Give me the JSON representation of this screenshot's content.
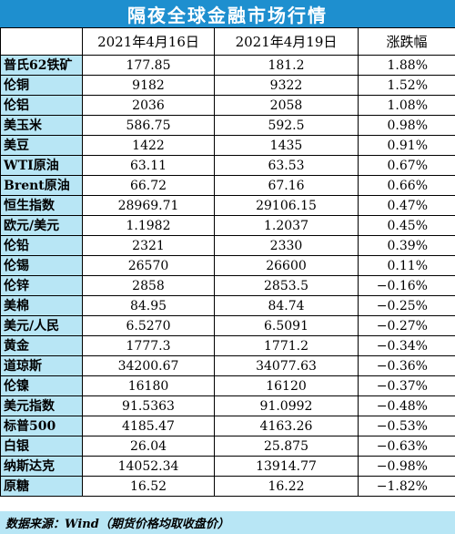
{
  "title": "隔夜全球金融市场行情",
  "headers": [
    "",
    "2021年4月16日",
    "2021年4月19日",
    "涨跌幅"
  ],
  "rows": [
    [
      "普氏62铁矿",
      "177.85",
      "181.2",
      "1.88%"
    ],
    [
      "伦铜",
      "9182",
      "9322",
      "1.52%"
    ],
    [
      "伦铝",
      "2036",
      "2058",
      "1.08%"
    ],
    [
      "美玉米",
      "586.75",
      "592.5",
      "0.98%"
    ],
    [
      "美豆",
      "1422",
      "1435",
      "0.91%"
    ],
    [
      "WTI原油",
      "63.11",
      "63.53",
      "0.67%"
    ],
    [
      "Brent原油",
      "66.72",
      "67.16",
      "0.66%"
    ],
    [
      "恒生指数",
      "28969.71",
      "29106.15",
      "0.47%"
    ],
    [
      "欧元/美元",
      "1.1982",
      "1.2037",
      "0.45%"
    ],
    [
      "伦铅",
      "2321",
      "2330",
      "0.39%"
    ],
    [
      "伦锡",
      "26570",
      "26600",
      "0.11%"
    ],
    [
      "伦锌",
      "2858",
      "2853.5",
      "−0.16%"
    ],
    [
      "美棉",
      "84.95",
      "84.74",
      "−0.25%"
    ],
    [
      "美元/人民",
      "6.5270",
      "6.5091",
      "−0.27%"
    ],
    [
      "黄金",
      "1777.3",
      "1771.2",
      "−0.34%"
    ],
    [
      "道琼斯",
      "34200.67",
      "34077.63",
      "−0.36%"
    ],
    [
      "伦镍",
      "16180",
      "16120",
      "−0.37%"
    ],
    [
      "美元指数",
      "91.5363",
      "91.0992",
      "−0.48%"
    ],
    [
      "标普500",
      "4185.47",
      "4163.26",
      "−0.53%"
    ],
    [
      "白银",
      "26.04",
      "25.875",
      "−0.63%"
    ],
    [
      "纳斯达克",
      "14052.34",
      "13914.77",
      "−0.98%"
    ],
    [
      "原糖",
      "16.52",
      "16.22",
      "−1.82%"
    ]
  ],
  "footer": "数据来源：Wind（期货价格均取收盘价）"
}
